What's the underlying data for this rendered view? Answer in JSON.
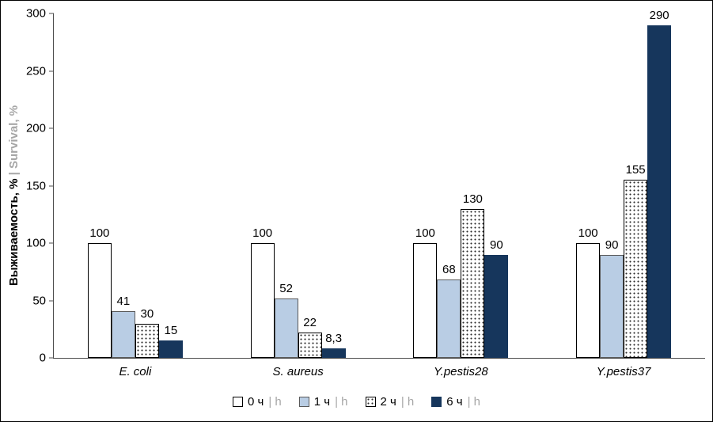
{
  "chart_data": {
    "type": "bar",
    "title": "",
    "categories": [
      "E. coli",
      "S. aureus",
      "Y.pestis28",
      "Y.pestis37"
    ],
    "series": [
      {
        "name": "0 ч | h",
        "name_main": "0 ч",
        "name_sub": "| h",
        "values": [
          100,
          100,
          100,
          100
        ],
        "labels": [
          "100",
          "100",
          "100",
          "100"
        ],
        "style": "white",
        "color": "#ffffff"
      },
      {
        "name": "1 ч | h",
        "name_main": "1 ч",
        "name_sub": "| h",
        "values": [
          41,
          52,
          68,
          90
        ],
        "labels": [
          "41",
          "52",
          "68",
          "90"
        ],
        "style": "lightblue",
        "color": "#b9cde4"
      },
      {
        "name": "2 ч | h",
        "name_main": "2 ч",
        "name_sub": "| h",
        "values": [
          30,
          22,
          130,
          155
        ],
        "labels": [
          "30",
          "22",
          "130",
          "155"
        ],
        "style": "dotted",
        "color": "#ffffff"
      },
      {
        "name": "6 ч | h",
        "name_main": "6 ч",
        "name_sub": "| h",
        "values": [
          15,
          8.3,
          90,
          290
        ],
        "labels": [
          "15",
          "8,3",
          "90",
          "290"
        ],
        "style": "navy",
        "color": "#16365c"
      }
    ],
    "ylabel_main": "Выживаемость, %",
    "ylabel_sub": "| Survival, %",
    "xlabel": "",
    "ylim": [
      0,
      300
    ],
    "yticks": [
      0,
      50,
      100,
      150,
      200,
      250,
      300
    ],
    "grid": false,
    "legend_position": "bottom",
    "colors": {
      "axis": "#4d4d4d",
      "sub_text": "#a6a6a6",
      "light_blue": "#b9cde4",
      "navy": "#16365c"
    }
  }
}
